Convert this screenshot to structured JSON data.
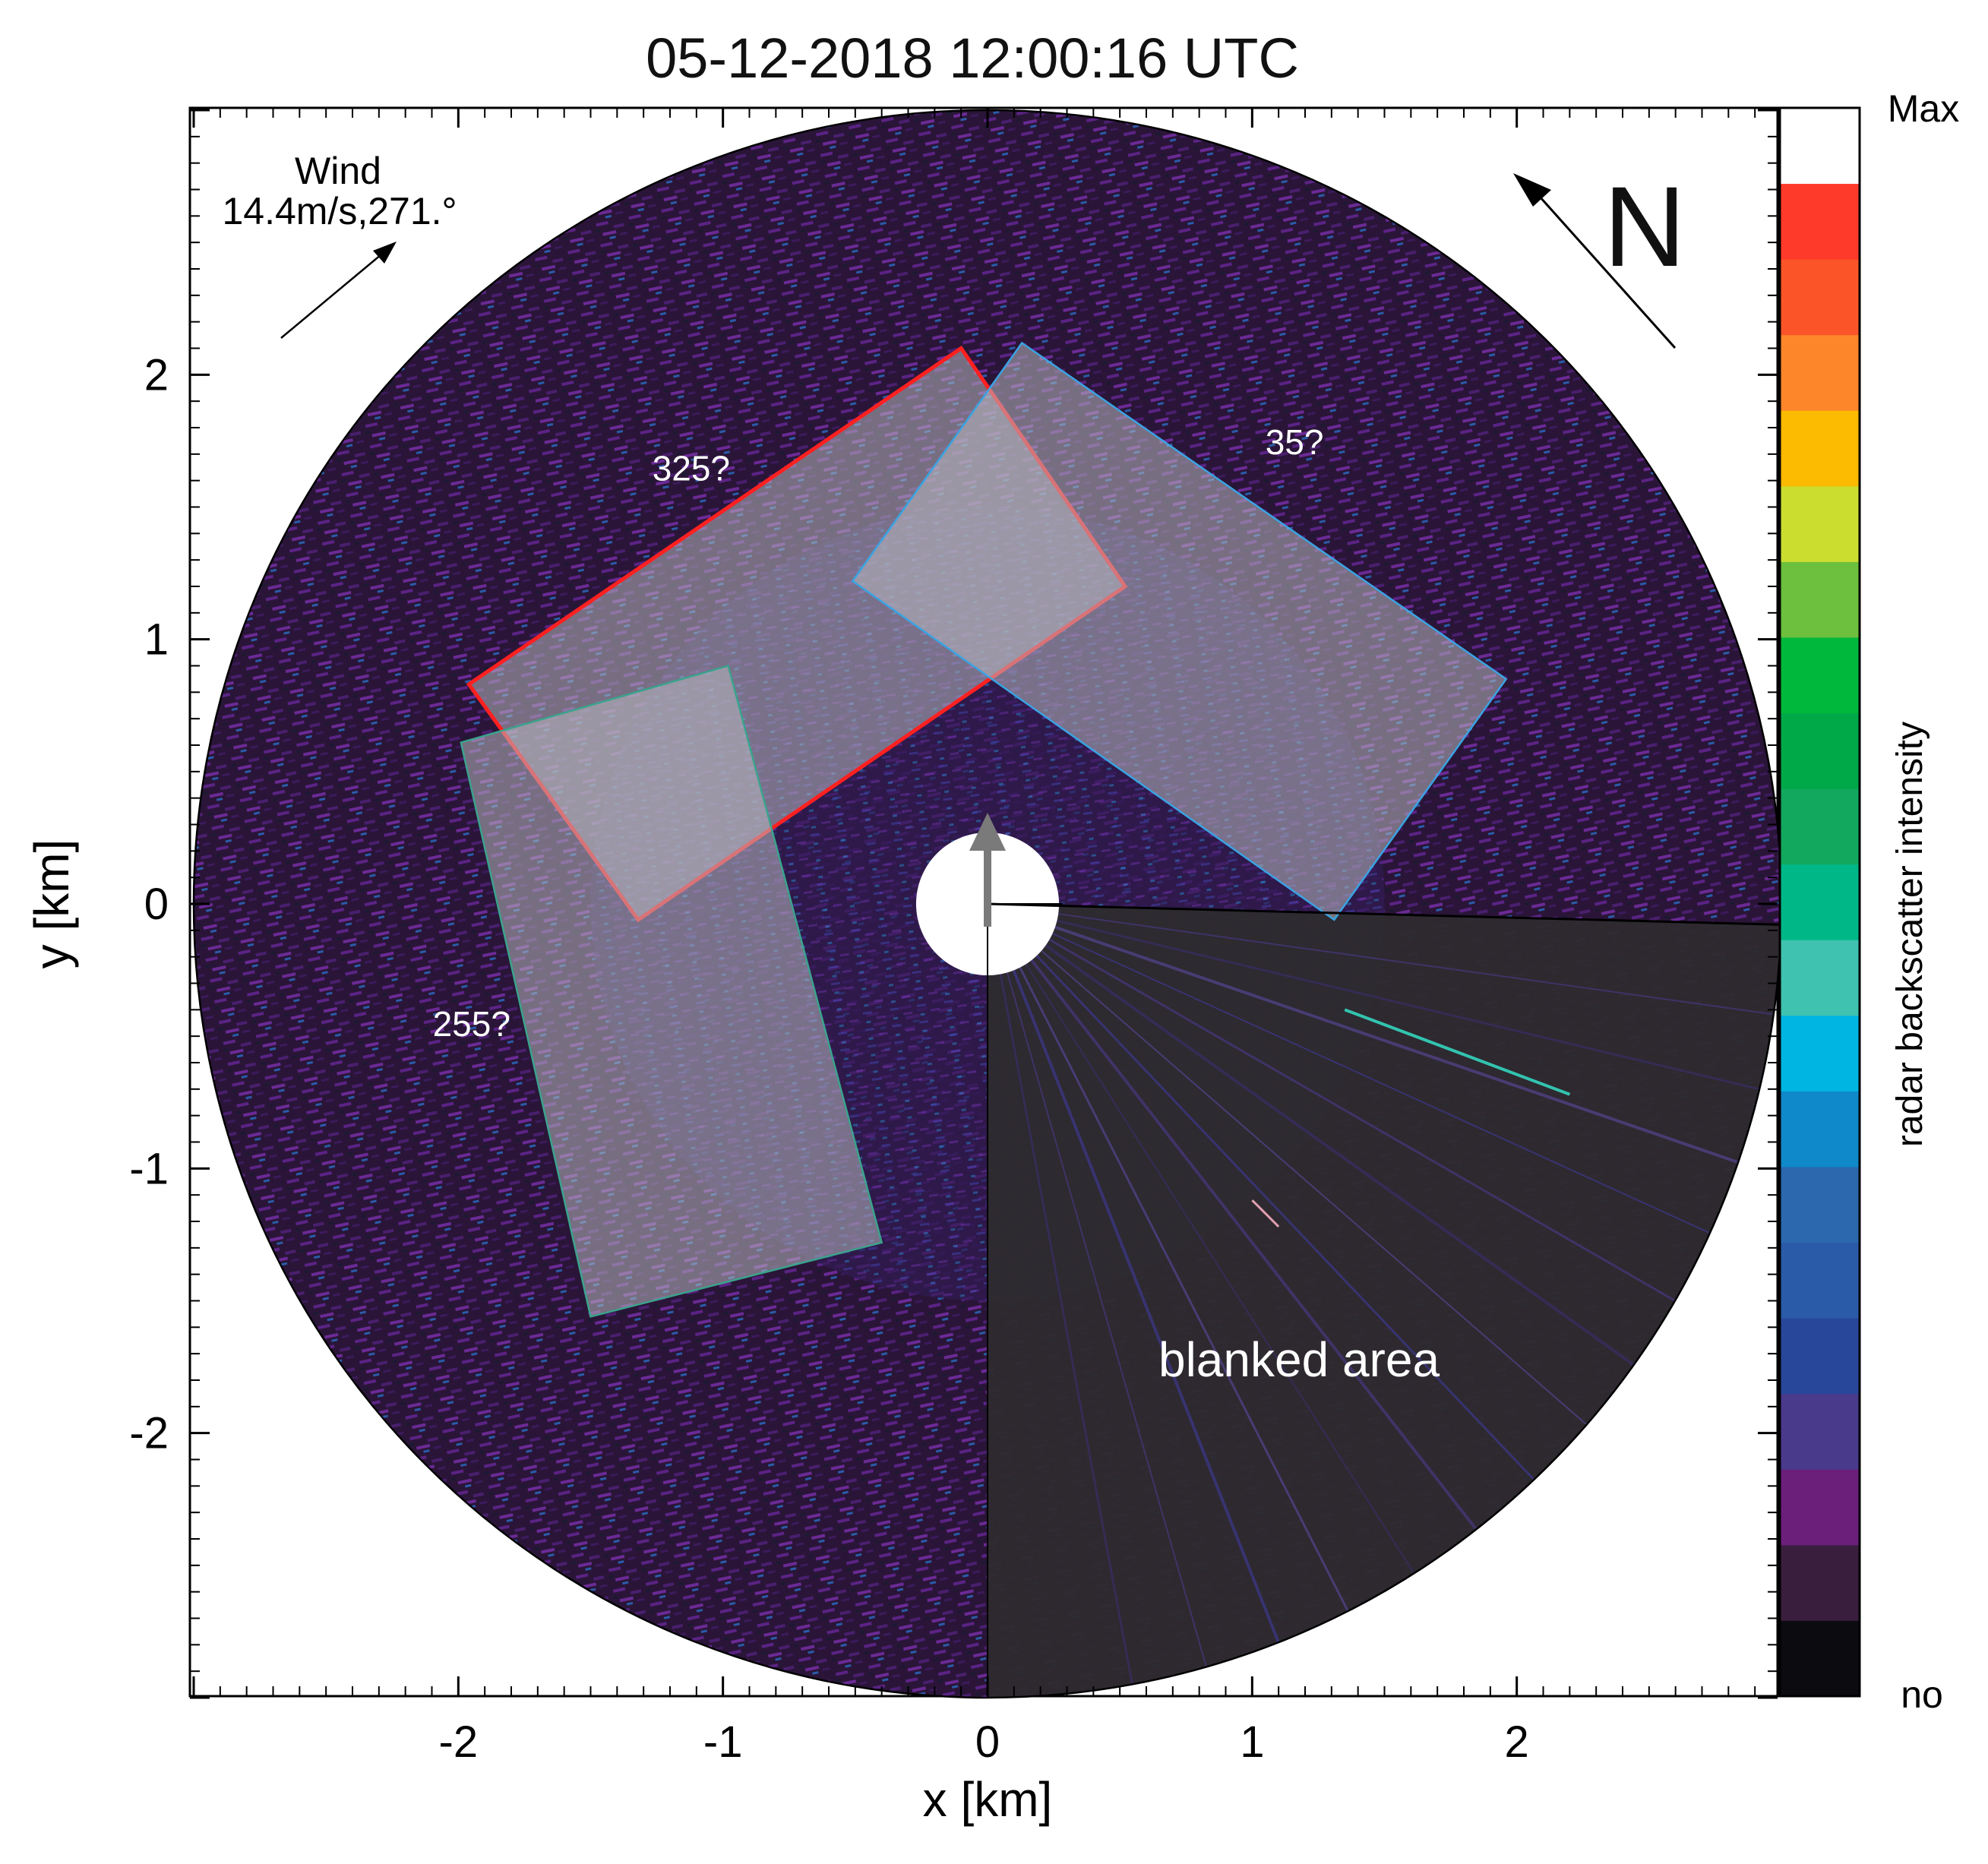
{
  "chart_data": {
    "type": "heatmap",
    "title": "05-12-2018 12:00:16 UTC",
    "xlabel": "x [km]",
    "ylabel": "y [km]",
    "xlim": [
      -3,
      3
    ],
    "ylim": [
      -3,
      3
    ],
    "x_ticks": [
      -2,
      -1,
      0,
      1,
      2
    ],
    "y_ticks": [
      -2,
      -1,
      0,
      1,
      2
    ],
    "x_tick_labels": [
      "-2",
      "-1",
      "0",
      "1",
      "2"
    ],
    "y_tick_labels": [
      "-2",
      "-1",
      "0",
      "1",
      "2"
    ],
    "radar_range_km": 3,
    "blind_radius_km": 0.27,
    "colorbar": {
      "label": "radar backscatter intensity",
      "max_label": "Max",
      "min_label": "no",
      "colors": [
        "#0b0b10",
        "#3a1e3e",
        "#6b1f7a",
        "#4a3a8c",
        "#28479a",
        "#2a5ba8",
        "#2b68ad",
        "#0f89c9",
        "#00b5e2",
        "#3fc2b0",
        "#00b887",
        "#12a85e",
        "#00a948",
        "#00b83c",
        "#6cc03e",
        "#cbdd2f",
        "#fcba00",
        "#fd862a",
        "#fa5428",
        "#fe3a2a",
        "#ffffff"
      ]
    },
    "wind": {
      "label": "Wind",
      "value": "14.4m/s,271.°"
    },
    "north_label": "N",
    "sectors": [
      {
        "label": "325?",
        "color": "#ff2020",
        "corners": [
          [
            -0.1,
            2.1
          ],
          [
            0.52,
            1.2
          ],
          [
            -1.32,
            -0.06
          ],
          [
            -1.96,
            0.83
          ]
        ]
      },
      {
        "label": "35?",
        "color": "#3aa3e3",
        "corners": [
          [
            0.13,
            2.12
          ],
          [
            1.96,
            0.85
          ],
          [
            1.31,
            -0.06
          ],
          [
            -0.51,
            1.22
          ]
        ]
      },
      {
        "label": "255?",
        "color": "#3aa38c",
        "corners": [
          [
            -1.99,
            0.61
          ],
          [
            -0.98,
            0.9
          ],
          [
            -0.4,
            -1.28
          ],
          [
            -1.5,
            -1.56
          ]
        ]
      }
    ],
    "blanked_label": "blanked area"
  }
}
